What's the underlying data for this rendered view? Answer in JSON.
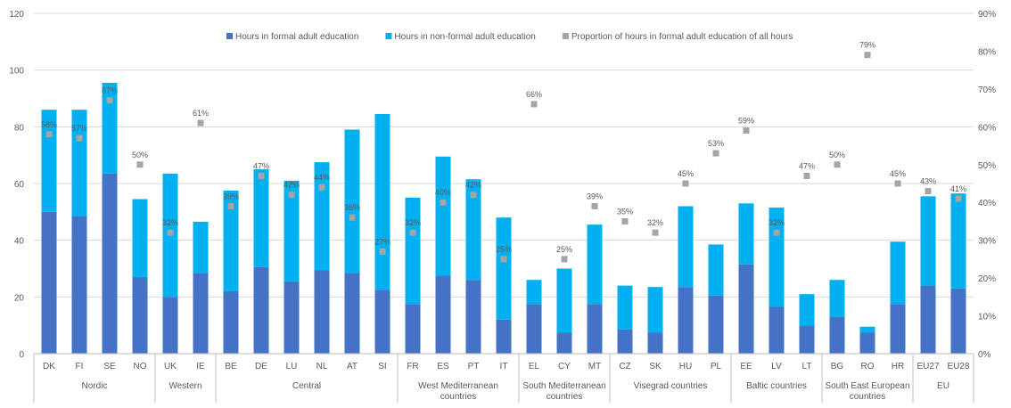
{
  "chart_data": {
    "type": "bar",
    "stacked": true,
    "grid": true,
    "legend_position": "top",
    "ylim": [
      0,
      120
    ],
    "y2lim": [
      0,
      90
    ],
    "y_ticks": [
      "0",
      "20",
      "40",
      "60",
      "80",
      "100",
      "120"
    ],
    "y2_ticks": [
      "0%",
      "10%",
      "20%",
      "30%",
      "40%",
      "50%",
      "60%",
      "70%",
      "80%",
      "90%"
    ],
    "categories": [
      "DK",
      "FI",
      "SE",
      "NO",
      "UK",
      "IE",
      "BE",
      "DE",
      "LU",
      "NL",
      "AT",
      "SI",
      "FR",
      "ES",
      "PT",
      "IT",
      "EL",
      "CY",
      "MT",
      "CZ",
      "SK",
      "HU",
      "PL",
      "EE",
      "LV",
      "LT",
      "BG",
      "RO",
      "HR",
      "EU27",
      "EU28"
    ],
    "groups": [
      {
        "label": "Nordic",
        "count": 4
      },
      {
        "label": "Western",
        "count": 2
      },
      {
        "label": "Central",
        "count": 6
      },
      {
        "label": "West Mediterranean countries",
        "count": 4
      },
      {
        "label": "South Mediterranean countries",
        "count": 3
      },
      {
        "label": "Visegrad countries",
        "count": 4
      },
      {
        "label": "Baltic countries",
        "count": 3
      },
      {
        "label": "South East European countries",
        "count": 3
      },
      {
        "label": "EU",
        "count": 2
      }
    ],
    "series": [
      {
        "name": "Hours in formal adult education",
        "color": "#4472C4",
        "values": [
          50,
          48.5,
          63.5,
          27,
          20,
          28.5,
          22,
          30.5,
          25.5,
          29.5,
          28.5,
          22.5,
          17.5,
          27.5,
          26,
          12,
          17.5,
          7.5,
          17.5,
          8.5,
          7.5,
          23.5,
          20.5,
          31.5,
          16.5,
          10,
          13,
          7.5,
          17.5,
          24,
          23
        ]
      },
      {
        "name": "Hours in non-formal adult education",
        "color": "#00B0F0",
        "values": [
          36,
          37.5,
          32,
          27.5,
          43.5,
          18,
          35.5,
          34.5,
          35.5,
          38,
          50.5,
          62,
          37.5,
          42,
          35.5,
          36,
          8.5,
          22.5,
          28,
          15.5,
          16,
          28.5,
          18,
          21.5,
          35,
          11,
          13,
          2,
          22,
          31.5,
          33.5
        ]
      },
      {
        "name": "Proportion of hours in formal adult education of all hours",
        "color": "#A5A5A5",
        "values": [
          58,
          57,
          67,
          50,
          32,
          61,
          39,
          47,
          42,
          44,
          36,
          27,
          32,
          40,
          42,
          25,
          66,
          25,
          39,
          35,
          32,
          45,
          53,
          59,
          32,
          47,
          50,
          79,
          45,
          43,
          41
        ],
        "labels": [
          "58%",
          "57%",
          "67%",
          "50%",
          "32%",
          "61%",
          "39%",
          "47%",
          "42%",
          "44%",
          "36%",
          "27%",
          "32%",
          "40%",
          "42%",
          "25%",
          "66%",
          "25%",
          "39%",
          "35%",
          "32%",
          "45%",
          "53%",
          "59%",
          "32%",
          "47%",
          "50%",
          "79%",
          "45%",
          "43%",
          "41%"
        ]
      }
    ]
  }
}
